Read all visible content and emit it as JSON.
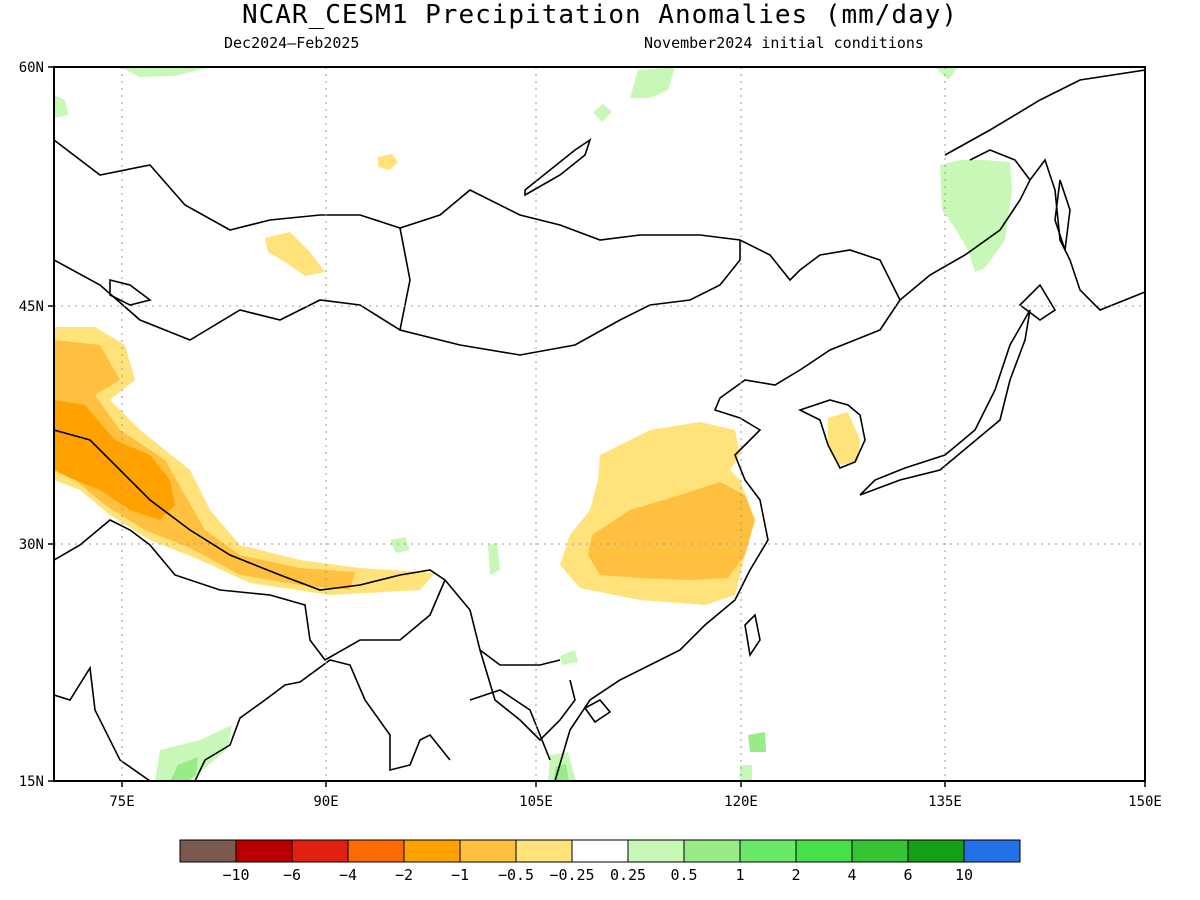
{
  "title": "NCAR_CESM1 Precipitation Anomalies (mm/day)",
  "period": "Dec2024–Feb2025",
  "init": "November2024 initial conditions",
  "lat_labels": [
    "60N",
    "45N",
    "30N",
    "15N"
  ],
  "lon_labels": [
    "75E",
    "90E",
    "105E",
    "120E",
    "135E",
    "150E"
  ],
  "colorbar": {
    "colors": [
      "#7a5a4e",
      "#b80000",
      "#e02010",
      "#ff6a00",
      "#ffa200",
      "#ffc040",
      "#ffe27a",
      "#ffffff",
      "#c8f8b8",
      "#98ec88",
      "#6ae868",
      "#48e048",
      "#34c434",
      "#14a014",
      "#2470e8"
    ],
    "labels": [
      "−10",
      "−6",
      "−4",
      "−2",
      "−1",
      "−0.5",
      "−0.25",
      "0.25",
      "0.5",
      "1",
      "2",
      "4",
      "6",
      "10"
    ]
  },
  "map": {
    "extent_lon": [
      70,
      150
    ],
    "extent_lat": [
      15,
      60
    ],
    "gridlines": "dotted",
    "anomaly_regions": [
      {
        "name": "dry-pamir-himalaya",
        "category": "-0.5"
      },
      {
        "name": "dry-himalaya-core",
        "category": "-1"
      },
      {
        "name": "dry-himalaya-strong",
        "category": "-2"
      },
      {
        "name": "dry-east-china",
        "category": "-0.5"
      },
      {
        "name": "dry-yangtze-core",
        "category": "-1"
      },
      {
        "name": "dry-korea",
        "category": "-0.5"
      },
      {
        "name": "dry-balkhash",
        "category": "-0.5"
      },
      {
        "name": "dry-west-siberia",
        "category": "-0.5"
      },
      {
        "name": "wet-manchuria",
        "category": "0.5"
      },
      {
        "name": "wet-arabian-sea",
        "category": "0.5"
      },
      {
        "name": "wet-philippines",
        "category": "0.5"
      }
    ]
  }
}
